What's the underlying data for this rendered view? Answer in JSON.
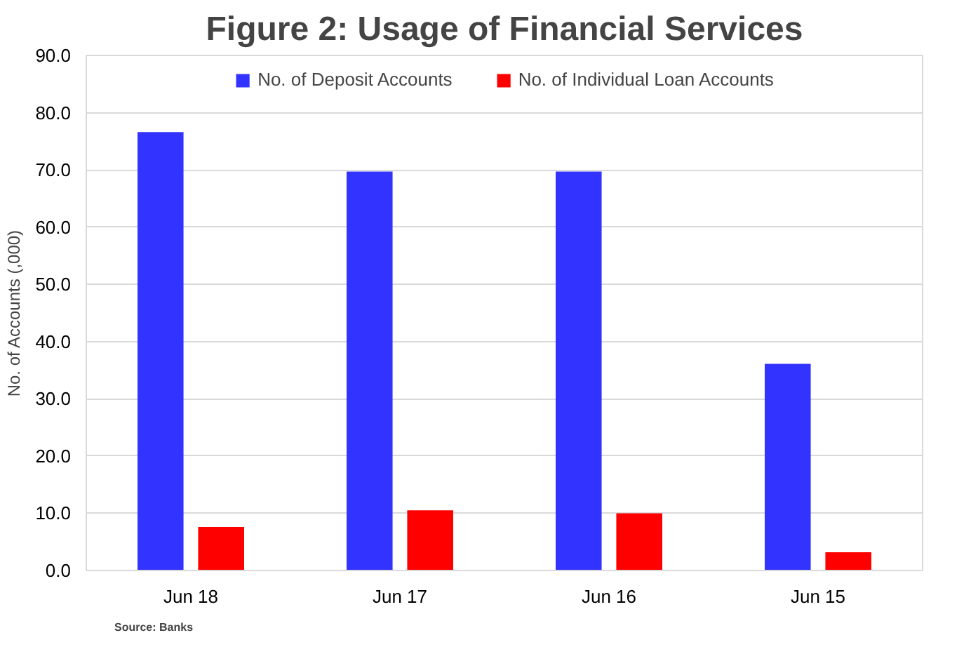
{
  "chart_data": {
    "type": "bar",
    "title": "Figure 2: Usage of Financial Services",
    "ylabel": "No. of Accounts (,000)",
    "categories": [
      "Jun 18",
      "Jun 17",
      "Jun 16",
      "Jun 15"
    ],
    "series": [
      {
        "name": "No. of Deposit Accounts",
        "color": "#3333ff",
        "values": [
          76.6,
          69.7,
          69.7,
          36.1
        ]
      },
      {
        "name": "No. of Individual Loan Accounts",
        "color": "#ff0000",
        "values": [
          7.6,
          10.5,
          10.0,
          3.2
        ]
      }
    ],
    "ylim": [
      0,
      90
    ],
    "yticks": [
      {
        "value": 0,
        "label": "0.0"
      },
      {
        "value": 10,
        "label": "10.0"
      },
      {
        "value": 20,
        "label": "20.0"
      },
      {
        "value": 30,
        "label": "30.0"
      },
      {
        "value": 40,
        "label": "40.0"
      },
      {
        "value": 50,
        "label": "50.0"
      },
      {
        "value": 60,
        "label": "60.0"
      },
      {
        "value": 70,
        "label": "70.0"
      },
      {
        "value": 80,
        "label": "80.0"
      },
      {
        "value": 90,
        "label": "90.0"
      }
    ],
    "grid": "y",
    "legend": "top",
    "annotations": [
      "Source: Banks"
    ]
  }
}
